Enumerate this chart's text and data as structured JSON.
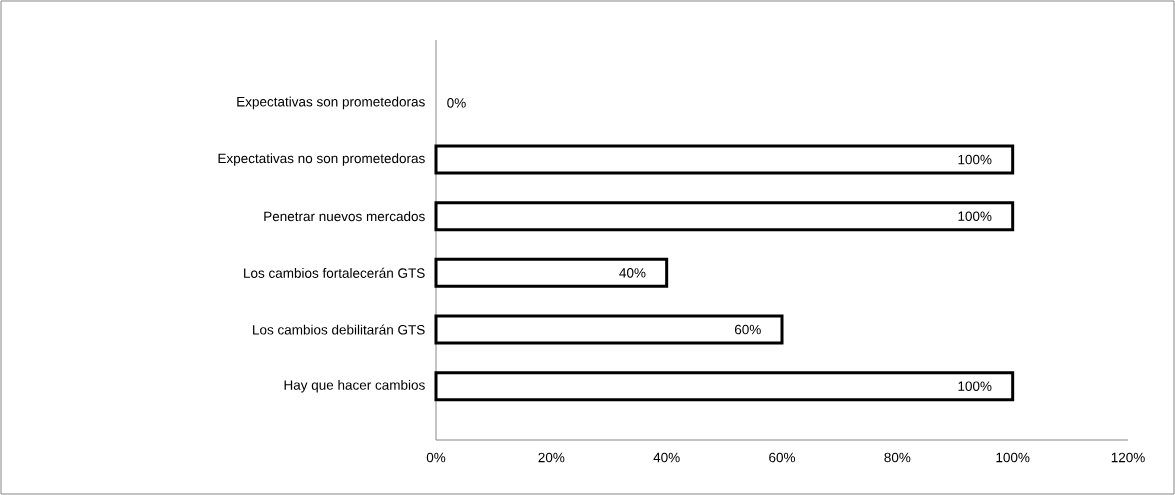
{
  "chart_data": {
    "type": "bar",
    "orientation": "horizontal",
    "categories": [
      "Expectativas son prometedoras",
      "Expectativas no son prometedoras",
      "Penetrar nuevos mercados",
      "Los cambios fortalecerán GTS",
      "Los cambios debilitarán GTS",
      "Hay que hacer cambios"
    ],
    "values": [
      0,
      100,
      100,
      40,
      60,
      100
    ],
    "value_labels": [
      "0%",
      "100%",
      "100%",
      "40%",
      "60%",
      "100%"
    ],
    "color": "#ffffff",
    "xlim": [
      0,
      120
    ],
    "xticks": [
      {
        "value": 0,
        "label": "0%"
      },
      {
        "value": 20,
        "label": "20%"
      },
      {
        "value": 40,
        "label": "40%"
      },
      {
        "value": 60,
        "label": "60%"
      },
      {
        "value": 80,
        "label": "80%"
      },
      {
        "value": 100,
        "label": "100%"
      },
      {
        "value": 120,
        "label": "120%"
      }
    ]
  }
}
